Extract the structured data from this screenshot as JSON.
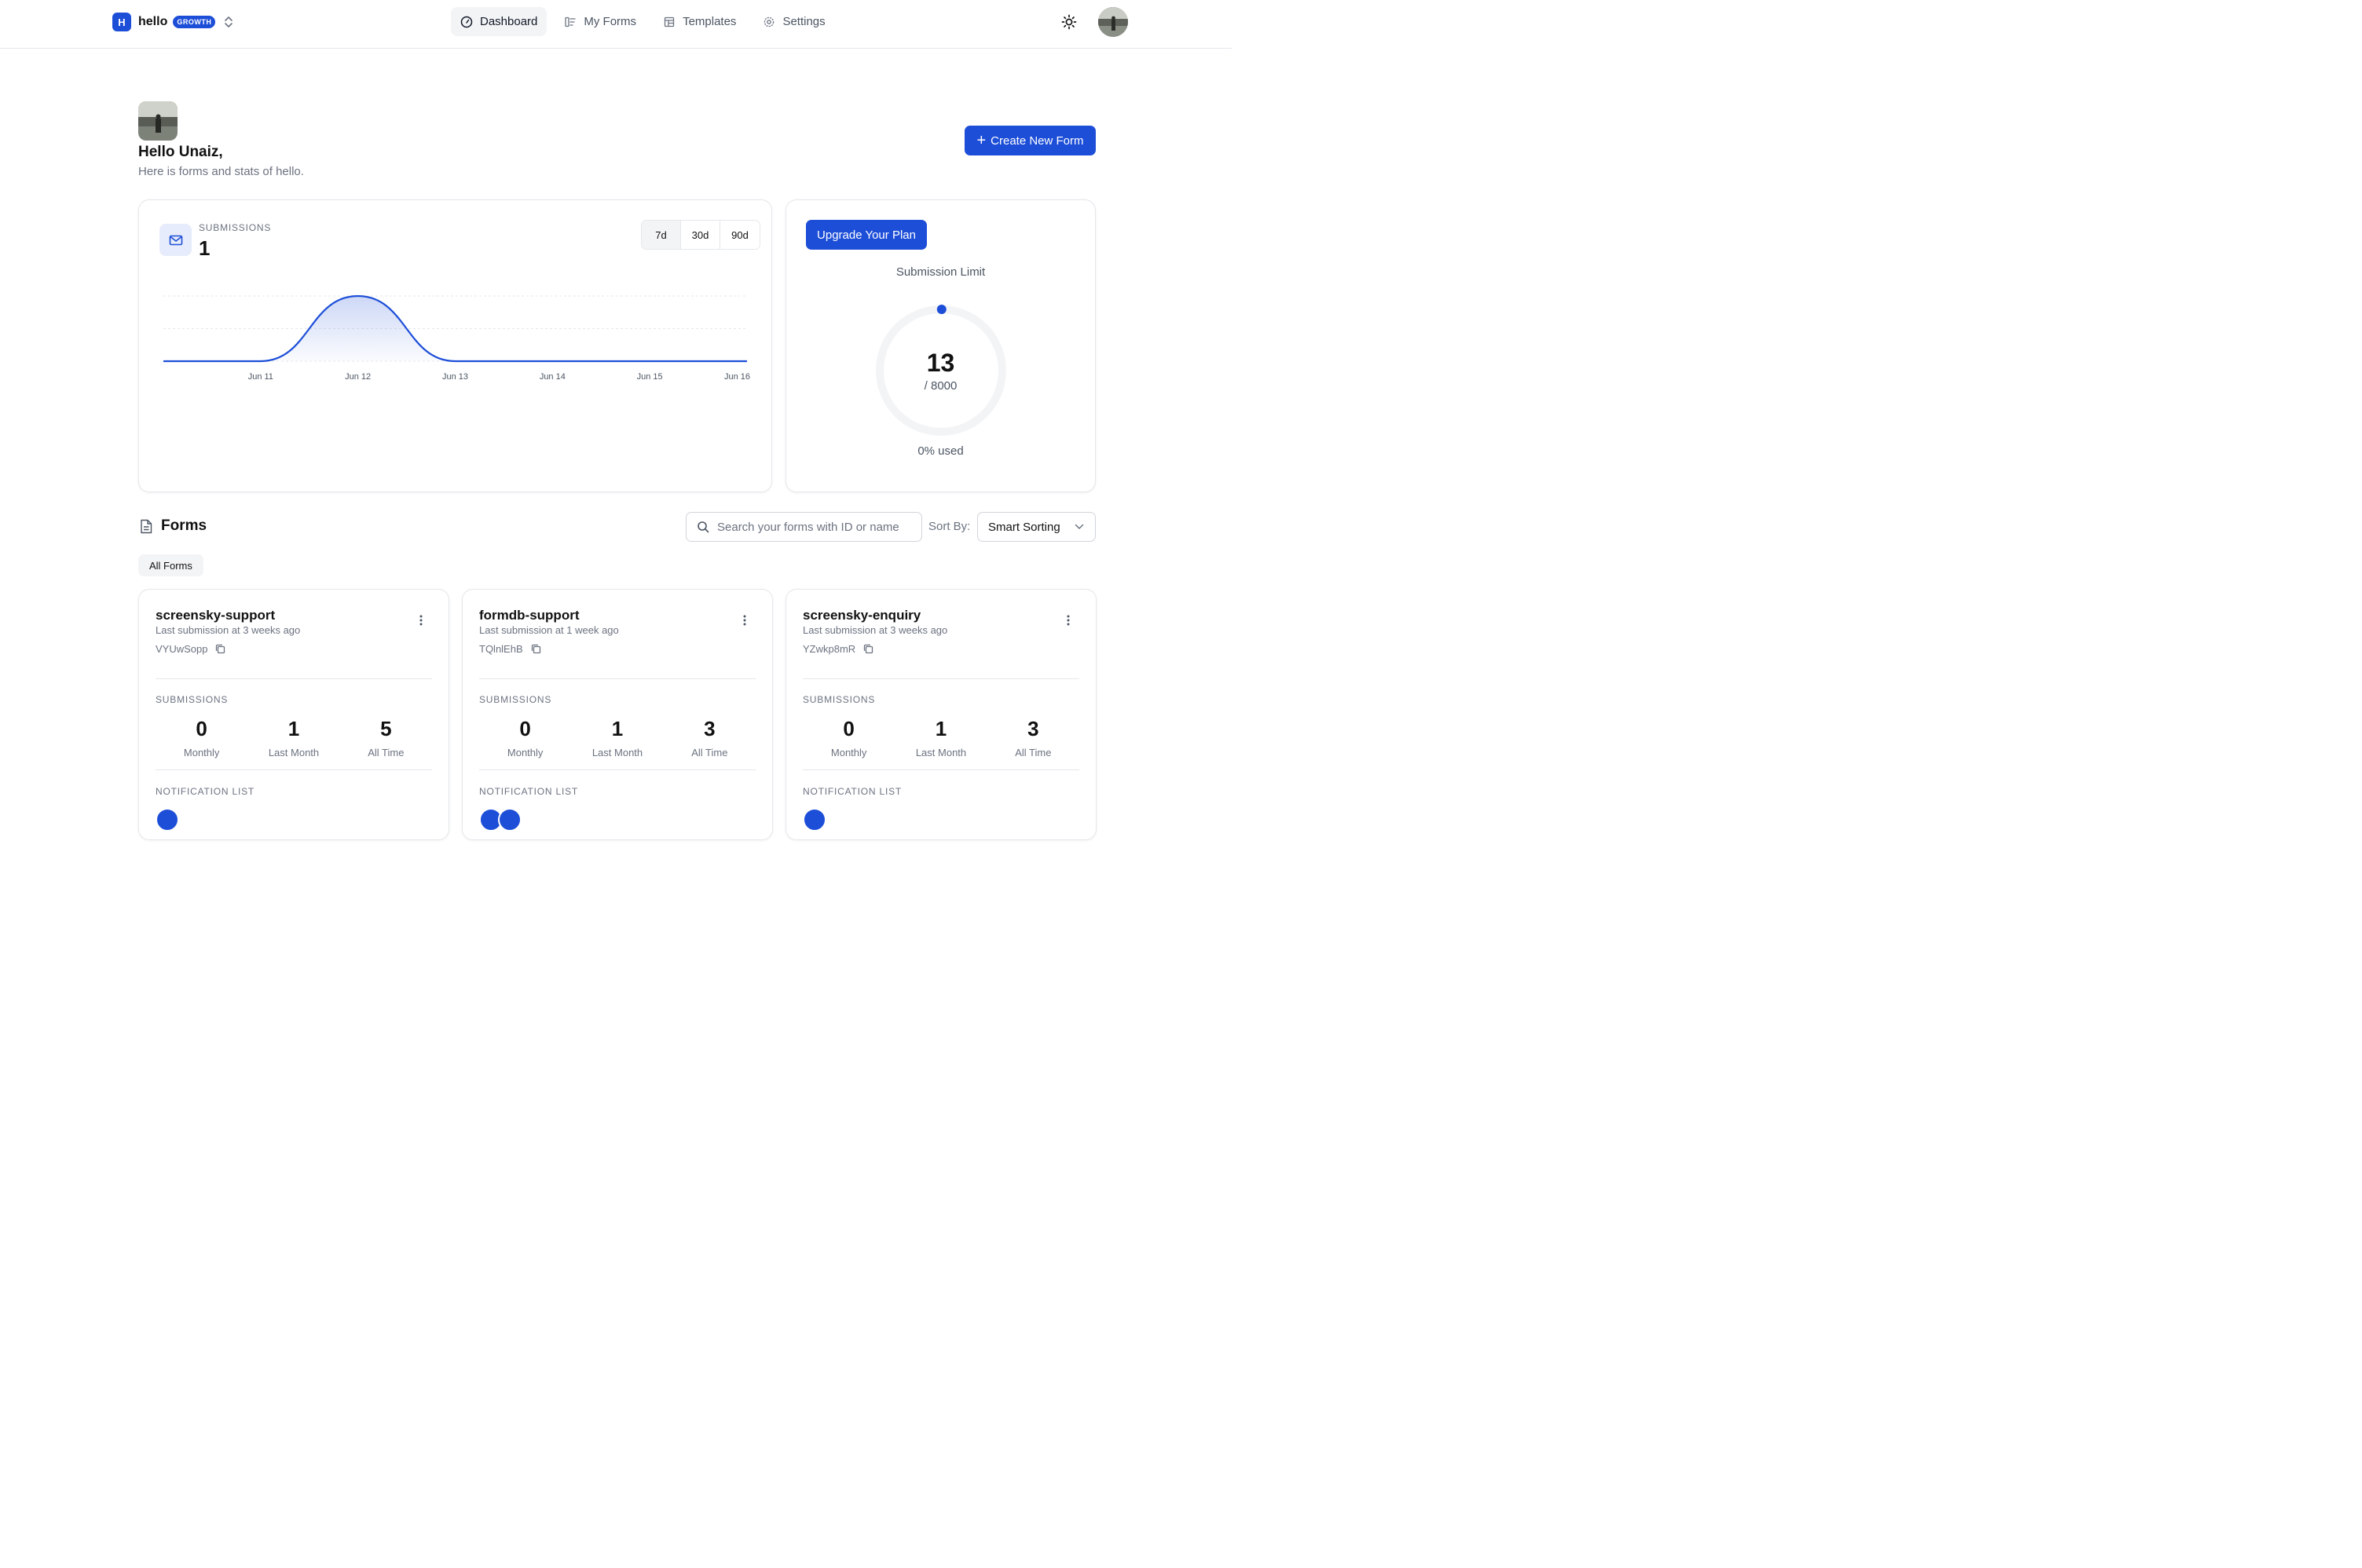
{
  "workspace": {
    "logo_letter": "H",
    "name": "hello",
    "plan_badge": "GROWTH"
  },
  "nav": {
    "dashboard": "Dashboard",
    "my_forms": "My Forms",
    "templates": "Templates",
    "settings": "Settings"
  },
  "greeting": {
    "title": "Hello Unaiz,",
    "subtitle": "Here is forms and stats of hello."
  },
  "actions": {
    "create_form": "Create New Form",
    "upgrade_plan": "Upgrade Your Plan"
  },
  "submissions_card": {
    "label": "SUBMISSIONS",
    "count": "1",
    "ranges": [
      "7d",
      "30d",
      "90d"
    ],
    "active_range": "7d"
  },
  "chart_data": {
    "type": "area",
    "x": [
      "Jun 10",
      "Jun 11",
      "Jun 12",
      "Jun 13",
      "Jun 14",
      "Jun 15",
      "Jun 16"
    ],
    "tick_labels": [
      "Jun 11",
      "Jun 12",
      "Jun 13",
      "Jun 14",
      "Jun 15",
      "Jun 16"
    ],
    "series": [
      {
        "values": [
          0,
          0,
          1,
          0,
          0,
          0,
          0
        ]
      }
    ],
    "ylim": [
      0,
      1
    ],
    "grid": "horizontal dashed",
    "line_color": "#1d4ed8"
  },
  "plan_card": {
    "limit_label": "Submission Limit",
    "used": "13",
    "max": "/ 8000",
    "usage_fraction": 0.0016,
    "usage_text": "0% used"
  },
  "forms_section": {
    "title": "Forms",
    "search_placeholder": "Search your forms with ID or name",
    "sort_label": "Sort By:",
    "sort_value": "Smart Sorting",
    "filter_chip": "All Forms"
  },
  "forms": [
    {
      "name": "screensky-support",
      "last_submission": "Last submission at 3 weeks ago",
      "id": "VYUwSopp",
      "submissions_label": "SUBMISSIONS",
      "stats": [
        {
          "value": "0",
          "label": "Monthly"
        },
        {
          "value": "1",
          "label": "Last Month"
        },
        {
          "value": "5",
          "label": "All Time"
        }
      ],
      "notification_label": "NOTIFICATION LIST"
    },
    {
      "name": "formdb-support",
      "last_submission": "Last submission at 1 week ago",
      "id": "TQlnlEhB",
      "submissions_label": "SUBMISSIONS",
      "stats": [
        {
          "value": "0",
          "label": "Monthly"
        },
        {
          "value": "1",
          "label": "Last Month"
        },
        {
          "value": "3",
          "label": "All Time"
        }
      ],
      "notification_label": "NOTIFICATION LIST"
    },
    {
      "name": "screensky-enquiry",
      "last_submission": "Last submission at 3 weeks ago",
      "id": "YZwkp8mR",
      "submissions_label": "SUBMISSIONS",
      "stats": [
        {
          "value": "0",
          "label": "Monthly"
        },
        {
          "value": "1",
          "label": "Last Month"
        },
        {
          "value": "3",
          "label": "All Time"
        }
      ],
      "notification_label": "NOTIFICATION LIST"
    }
  ],
  "colors": {
    "accent": "#1d4ed8",
    "border": "#e5e7eb",
    "muted_text": "#6b7280"
  }
}
